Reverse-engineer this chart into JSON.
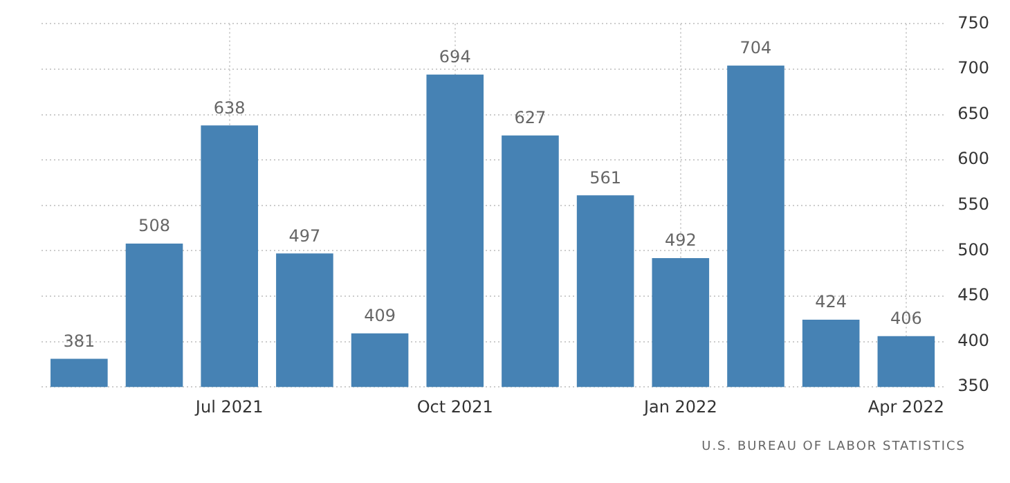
{
  "chart_data": {
    "type": "bar",
    "categories": [
      null,
      null,
      "Jul 2021",
      null,
      null,
      "Oct 2021",
      null,
      null,
      "Jan 2022",
      null,
      null,
      "Apr 2022"
    ],
    "values": [
      381,
      508,
      638,
      497,
      409,
      694,
      627,
      561,
      492,
      704,
      424,
      406
    ],
    "color": "#4682b4",
    "ylim": [
      350,
      750
    ],
    "yticks": [
      350,
      400,
      450,
      500,
      550,
      600,
      650,
      700,
      750
    ],
    "grid": true,
    "legend": false,
    "data_labels": true,
    "annotations": [
      "U.S. BUREAU OF LABOR STATISTICS"
    ]
  }
}
